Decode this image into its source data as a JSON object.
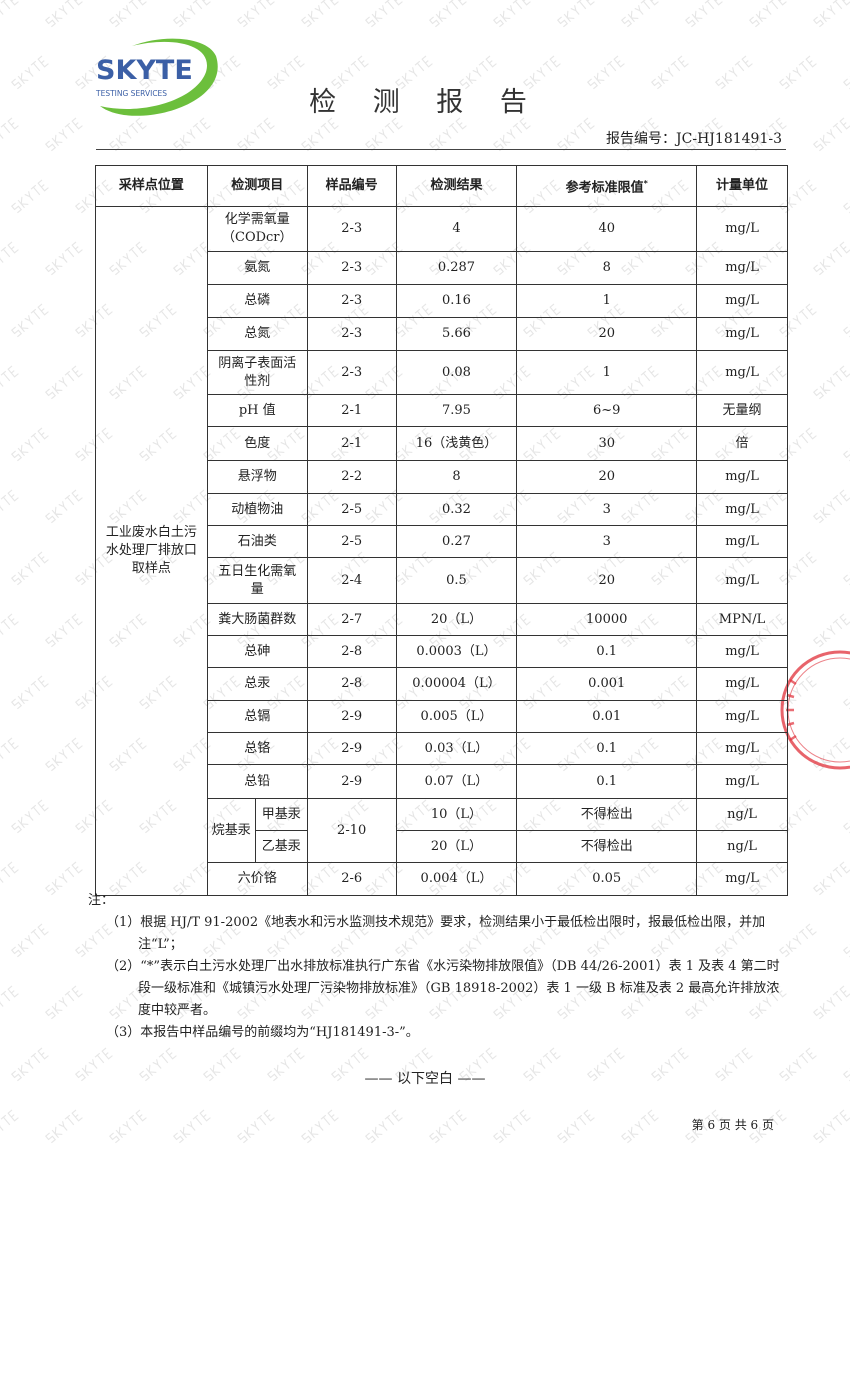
{
  "logo": {
    "name": "SKYTE",
    "tagline": "TESTING SERVICES",
    "brand_color": "#3b5fa6",
    "swoosh_color": "#6cbf3c"
  },
  "watermark": "SKYTE",
  "title": "检 测 报 告",
  "report_number": "报告编号：JC-HJ181491-3",
  "table": {
    "headers": [
      "采样点位置",
      "检测项目",
      "样品编号",
      "检测结果",
      "参考标准限值",
      "计量单位"
    ],
    "limit_marker": "*",
    "location": "工业废水白土污水处理厂排放口取样点",
    "rows": [
      {
        "item": "化学需氧量（CODcr）",
        "sample": "2-3",
        "result": "4",
        "limit": "40",
        "unit": "mg/L"
      },
      {
        "item": "氨氮",
        "sample": "2-3",
        "result": "0.287",
        "limit": "8",
        "unit": "mg/L"
      },
      {
        "item": "总磷",
        "sample": "2-3",
        "result": "0.16",
        "limit": "1",
        "unit": "mg/L"
      },
      {
        "item": "总氮",
        "sample": "2-3",
        "result": "5.66",
        "limit": "20",
        "unit": "mg/L"
      },
      {
        "item": "阴离子表面活性剂",
        "sample": "2-3",
        "result": "0.08",
        "limit": "1",
        "unit": "mg/L"
      },
      {
        "item": "pH 值",
        "sample": "2-1",
        "result": "7.95",
        "limit": "6~9",
        "unit": "无量纲"
      },
      {
        "item": "色度",
        "sample": "2-1",
        "result": "16（浅黄色）",
        "limit": "30",
        "unit": "倍"
      },
      {
        "item": "悬浮物",
        "sample": "2-2",
        "result": "8",
        "limit": "20",
        "unit": "mg/L"
      },
      {
        "item": "动植物油",
        "sample": "2-5",
        "result": "0.32",
        "limit": "3",
        "unit": "mg/L"
      },
      {
        "item": "石油类",
        "sample": "2-5",
        "result": "0.27",
        "limit": "3",
        "unit": "mg/L"
      },
      {
        "item": "五日生化需氧量",
        "sample": "2-4",
        "result": "0.5",
        "limit": "20",
        "unit": "mg/L"
      },
      {
        "item": "粪大肠菌群数",
        "sample": "2-7",
        "result": "20（L）",
        "limit": "10000",
        "unit": "MPN/L"
      },
      {
        "item": "总砷",
        "sample": "2-8",
        "result": "0.0003（L）",
        "limit": "0.1",
        "unit": "mg/L"
      },
      {
        "item": "总汞",
        "sample": "2-8",
        "result": "0.00004（L）",
        "limit": "0.001",
        "unit": "mg/L"
      },
      {
        "item": "总镉",
        "sample": "2-9",
        "result": "0.005（L）",
        "limit": "0.01",
        "unit": "mg/L"
      },
      {
        "item": "总铬",
        "sample": "2-9",
        "result": "0.03（L）",
        "limit": "0.1",
        "unit": "mg/L"
      },
      {
        "item": "总铅",
        "sample": "2-9",
        "result": "0.07（L）",
        "limit": "0.1",
        "unit": "mg/L"
      }
    ],
    "alkyl_mercury": {
      "group": "烷基汞",
      "sample": "2-10",
      "subrows": [
        {
          "item": "甲基汞",
          "result": "10（L）",
          "limit": "不得检出",
          "unit": "ng/L"
        },
        {
          "item": "乙基汞",
          "result": "20（L）",
          "limit": "不得检出",
          "unit": "ng/L"
        }
      ]
    },
    "last_row": {
      "item": "六价铬",
      "sample": "2-6",
      "result": "0.004（L）",
      "limit": "0.05",
      "unit": "mg/L"
    }
  },
  "notes": {
    "label": "注：",
    "items": [
      "（1）根据 HJ/T 91-2002《地表水和污水监测技术规范》要求，检测结果小于最低检出限时，报最低检出限，并加注“L”；",
      "（2）“*”表示白土污水处理厂出水排放标准执行广东省《水污染物排放限值》（DB 44/26-2001）表 1 及表 4 第二时段一级标准和《城镇污水处理厂污染物排放标准》（GB 18918-2002）表 1 一级 B 标准及表 2 最高允许排放浓度中较严者。",
      "（3）本报告中样品编号的前缀均为“HJ181491-3-”。"
    ]
  },
  "end_mark": "—— 以下空白 ——",
  "page_number": "第 6 页  共 6 页",
  "stamp_color": "#e0303a"
}
